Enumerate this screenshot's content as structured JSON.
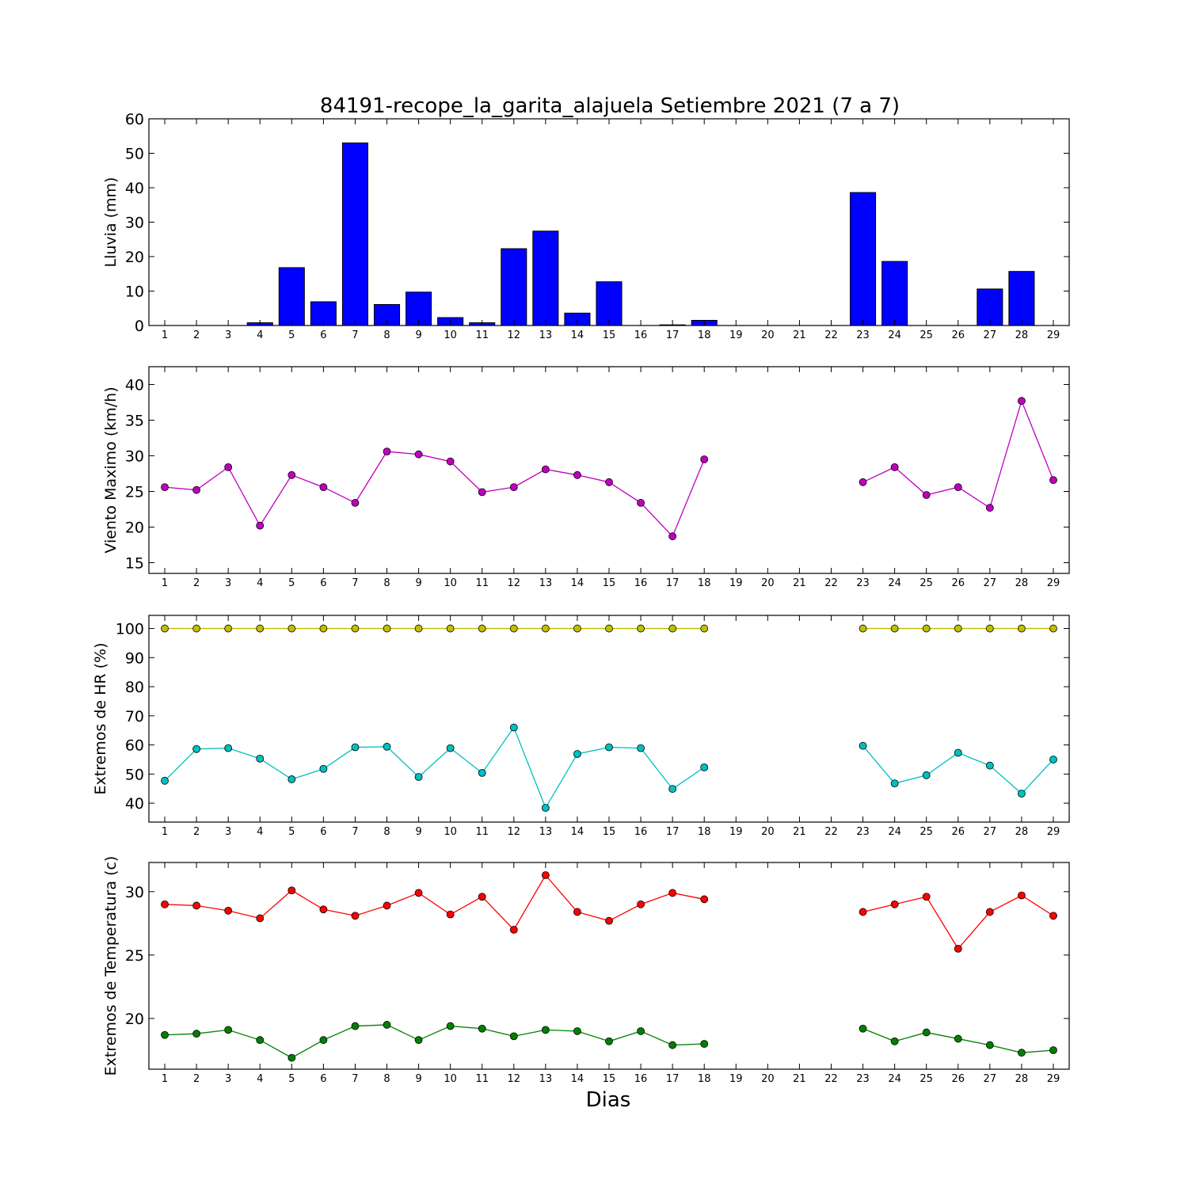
{
  "figure": {
    "title": "84191-recope_la_garita_alajuela Setiembre 2021  (7 a 7)",
    "xlabel": "Dias"
  },
  "chart_data": [
    {
      "type": "bar",
      "ylabel": "Lluvia (mm)",
      "ylim": [
        0,
        60
      ],
      "yticks": [
        0,
        10,
        20,
        30,
        40,
        50,
        60
      ],
      "categories": [
        1,
        2,
        3,
        4,
        5,
        6,
        7,
        8,
        9,
        10,
        11,
        12,
        13,
        14,
        15,
        16,
        17,
        18,
        19,
        20,
        21,
        22,
        23,
        24,
        25,
        26,
        27,
        28,
        29
      ],
      "series": [
        {
          "color": "#0000ff",
          "values": [
            0,
            0,
            0,
            0.8,
            16.8,
            6.9,
            53.0,
            6.1,
            9.7,
            2.3,
            0.8,
            22.3,
            27.4,
            3.6,
            12.7,
            0,
            0.2,
            1.5,
            0,
            0,
            0,
            0,
            38.6,
            18.6,
            0,
            0,
            10.6,
            15.7,
            0
          ]
        }
      ]
    },
    {
      "type": "line",
      "ylabel": "Viento Maximo (km/h)",
      "ylim": [
        13.5,
        42.5
      ],
      "yticks": [
        15,
        20,
        25,
        30,
        35,
        40
      ],
      "x": [
        1,
        2,
        3,
        4,
        5,
        6,
        7,
        8,
        9,
        10,
        11,
        12,
        13,
        14,
        15,
        16,
        17,
        18,
        19,
        20,
        21,
        22,
        23,
        24,
        25,
        26,
        27,
        28,
        29
      ],
      "series": [
        {
          "color": "#bf00bf",
          "values": [
            25.6,
            25.2,
            28.4,
            20.2,
            27.3,
            25.6,
            23.4,
            30.6,
            30.2,
            29.2,
            24.9,
            25.6,
            28.1,
            27.3,
            26.3,
            23.4,
            18.7,
            29.5,
            null,
            null,
            null,
            null,
            26.3,
            28.4,
            24.5,
            25.6,
            22.7,
            37.7,
            26.6
          ]
        }
      ]
    },
    {
      "type": "line",
      "ylabel": "Extremos de HR (%)",
      "ylim": [
        33.5,
        104.5
      ],
      "yticks": [
        40,
        50,
        60,
        70,
        80,
        90,
        100
      ],
      "x": [
        1,
        2,
        3,
        4,
        5,
        6,
        7,
        8,
        9,
        10,
        11,
        12,
        13,
        14,
        15,
        16,
        17,
        18,
        19,
        20,
        21,
        22,
        23,
        24,
        25,
        26,
        27,
        28,
        29
      ],
      "series": [
        {
          "color": "#bfbf00",
          "values": [
            100,
            100,
            100,
            100,
            100,
            100,
            100,
            100,
            100,
            100,
            100,
            100,
            100,
            100,
            100,
            100,
            100,
            100,
            null,
            null,
            null,
            null,
            100,
            100,
            100,
            100,
            100,
            100,
            100
          ]
        },
        {
          "color": "#00bfbf",
          "values": [
            47.7,
            58.6,
            58.9,
            55.3,
            48.2,
            51.8,
            59.2,
            59.4,
            49.0,
            58.9,
            50.4,
            66.0,
            38.4,
            56.9,
            59.2,
            58.9,
            44.9,
            52.3,
            null,
            null,
            null,
            null,
            59.7,
            46.8,
            49.6,
            57.3,
            52.9,
            43.3,
            55.0
          ]
        }
      ]
    },
    {
      "type": "line",
      "ylabel": "Extremos de Temperatura (c)",
      "ylim": [
        16.0,
        32.3
      ],
      "yticks": [
        20,
        25,
        30
      ],
      "x": [
        1,
        2,
        3,
        4,
        5,
        6,
        7,
        8,
        9,
        10,
        11,
        12,
        13,
        14,
        15,
        16,
        17,
        18,
        19,
        20,
        21,
        22,
        23,
        24,
        25,
        26,
        27,
        28,
        29
      ],
      "series": [
        {
          "color": "#ff0000",
          "values": [
            29.0,
            28.9,
            28.5,
            27.9,
            30.1,
            28.6,
            28.1,
            28.9,
            29.9,
            28.2,
            29.6,
            27.0,
            31.3,
            28.4,
            27.7,
            29.0,
            29.9,
            29.4,
            null,
            null,
            null,
            null,
            28.4,
            29.0,
            29.6,
            25.5,
            28.4,
            29.7,
            28.1
          ]
        },
        {
          "color": "#008000",
          "values": [
            18.7,
            18.8,
            19.1,
            18.3,
            16.9,
            18.3,
            19.4,
            19.5,
            18.3,
            19.4,
            19.2,
            18.6,
            19.1,
            19.0,
            18.2,
            19.0,
            17.9,
            18.0,
            null,
            null,
            null,
            null,
            19.2,
            18.2,
            18.9,
            18.4,
            17.9,
            17.3,
            17.5
          ]
        }
      ]
    }
  ]
}
